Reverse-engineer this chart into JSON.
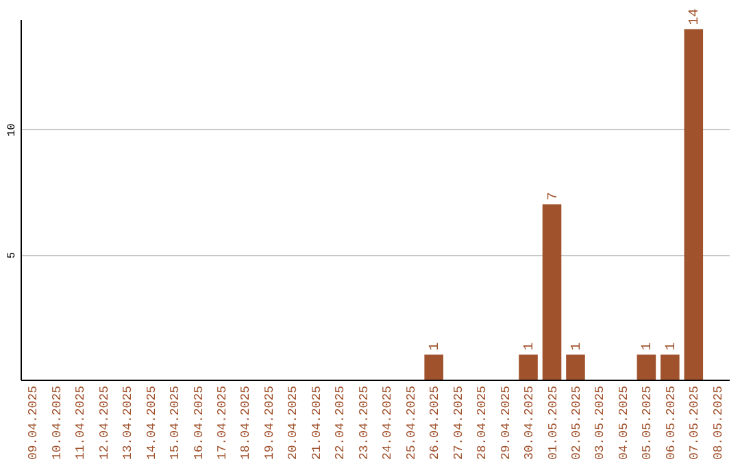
{
  "chart_data": {
    "type": "bar",
    "categories": [
      "09.04.2025",
      "10.04.2025",
      "11.04.2025",
      "12.04.2025",
      "13.04.2025",
      "14.04.2025",
      "15.04.2025",
      "16.04.2025",
      "17.04.2025",
      "18.04.2025",
      "19.04.2025",
      "20.04.2025",
      "21.04.2025",
      "22.04.2025",
      "23.04.2025",
      "24.04.2025",
      "25.04.2025",
      "26.04.2025",
      "27.04.2025",
      "28.04.2025",
      "29.04.2025",
      "30.04.2025",
      "01.05.2025",
      "02.05.2025",
      "03.05.2025",
      "04.05.2025",
      "05.05.2025",
      "06.05.2025",
      "07.05.2025",
      "08.05.2025"
    ],
    "values": [
      null,
      null,
      null,
      null,
      null,
      null,
      null,
      null,
      null,
      null,
      null,
      null,
      null,
      null,
      null,
      null,
      null,
      1,
      null,
      null,
      null,
      1,
      7,
      1,
      null,
      null,
      1,
      1,
      14,
      null
    ],
    "color": "#a0522d",
    "ylim": [
      0,
      14.4
    ],
    "yticks": [
      5,
      10
    ],
    "grid": "y",
    "data_labels": true
  }
}
